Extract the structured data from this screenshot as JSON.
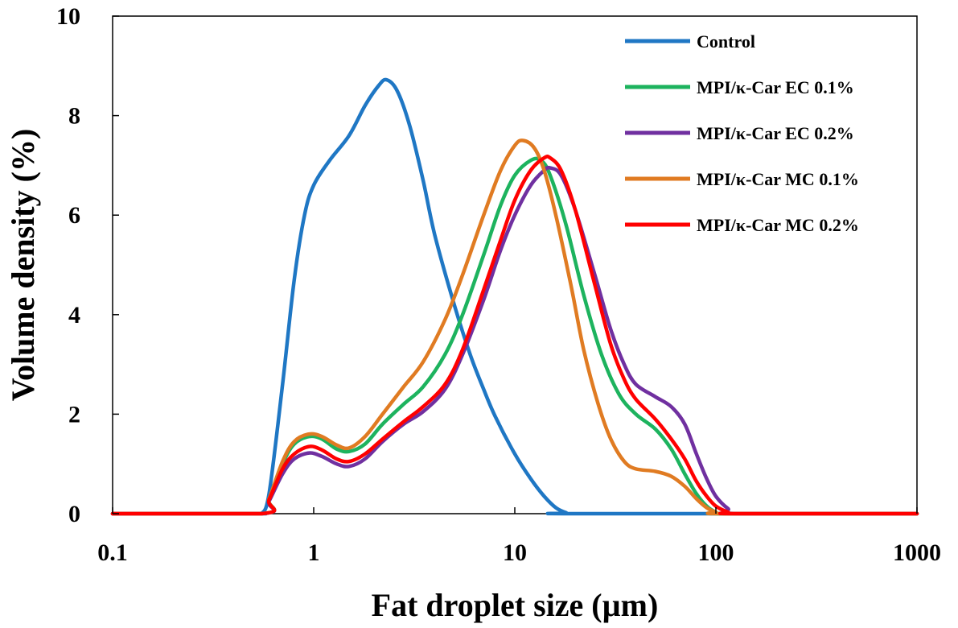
{
  "chart_data": {
    "type": "line",
    "xlabel": "Fat droplet size (µm)",
    "ylabel": "Volume density (%)",
    "xscale": "log",
    "xlim": [
      0.1,
      1000
    ],
    "ylim": [
      0,
      10
    ],
    "x_ticks": [
      "0.1",
      "1",
      "10",
      "100",
      "1000"
    ],
    "y_ticks": [
      "0",
      "2",
      "4",
      "6",
      "8",
      "10"
    ],
    "grid": false,
    "legend_position": "top-right",
    "series": [
      {
        "name": "Control",
        "color": "#1f77c4",
        "points": [
          [
            0.1,
            0
          ],
          [
            0.5,
            0
          ],
          [
            0.55,
            0
          ],
          [
            0.6,
            0.4
          ],
          [
            0.7,
            2.6
          ],
          [
            0.8,
            4.7
          ],
          [
            0.9,
            6.0
          ],
          [
            1.0,
            6.6
          ],
          [
            1.2,
            7.1
          ],
          [
            1.5,
            7.6
          ],
          [
            1.8,
            8.2
          ],
          [
            2.1,
            8.6
          ],
          [
            2.3,
            8.72
          ],
          [
            2.6,
            8.5
          ],
          [
            3.0,
            7.8
          ],
          [
            3.5,
            6.7
          ],
          [
            4.0,
            5.6
          ],
          [
            5.0,
            4.2
          ],
          [
            6.0,
            3.2
          ],
          [
            7.0,
            2.5
          ],
          [
            8.0,
            1.95
          ],
          [
            10.0,
            1.2
          ],
          [
            12.0,
            0.7
          ],
          [
            14.0,
            0.35
          ],
          [
            16.0,
            0.12
          ],
          [
            18.0,
            0.02
          ],
          [
            20.0,
            0
          ],
          [
            1000,
            0
          ]
        ]
      },
      {
        "name": "MPI/κ-Car EC 0.1%",
        "color": "#1db35e",
        "points": [
          [
            0.1,
            0
          ],
          [
            0.55,
            0
          ],
          [
            0.6,
            0.3
          ],
          [
            0.7,
            1.0
          ],
          [
            0.8,
            1.4
          ],
          [
            0.95,
            1.55
          ],
          [
            1.1,
            1.5
          ],
          [
            1.3,
            1.3
          ],
          [
            1.5,
            1.25
          ],
          [
            1.8,
            1.4
          ],
          [
            2.2,
            1.8
          ],
          [
            2.8,
            2.2
          ],
          [
            3.5,
            2.55
          ],
          [
            4.5,
            3.2
          ],
          [
            5.5,
            4.0
          ],
          [
            7.0,
            5.2
          ],
          [
            8.5,
            6.2
          ],
          [
            10.0,
            6.8
          ],
          [
            12.0,
            7.1
          ],
          [
            13.5,
            7.1
          ],
          [
            15.0,
            6.8
          ],
          [
            18.0,
            5.8
          ],
          [
            22.0,
            4.4
          ],
          [
            27.0,
            3.2
          ],
          [
            33.0,
            2.4
          ],
          [
            40.0,
            2.0
          ],
          [
            50.0,
            1.7
          ],
          [
            60.0,
            1.3
          ],
          [
            70.0,
            0.8
          ],
          [
            80.0,
            0.4
          ],
          [
            90.0,
            0.15
          ],
          [
            100.0,
            0.03
          ],
          [
            110.0,
            0
          ],
          [
            1000,
            0
          ]
        ]
      },
      {
        "name": "MPI/κ-Car EC 0.2%",
        "color": "#7030a0",
        "points": [
          [
            0.1,
            0
          ],
          [
            0.55,
            0
          ],
          [
            0.6,
            0.25
          ],
          [
            0.7,
            0.8
          ],
          [
            0.8,
            1.1
          ],
          [
            0.95,
            1.22
          ],
          [
            1.1,
            1.15
          ],
          [
            1.3,
            1.0
          ],
          [
            1.5,
            0.95
          ],
          [
            1.8,
            1.1
          ],
          [
            2.2,
            1.45
          ],
          [
            2.8,
            1.8
          ],
          [
            3.5,
            2.05
          ],
          [
            4.5,
            2.5
          ],
          [
            5.5,
            3.2
          ],
          [
            7.0,
            4.3
          ],
          [
            8.5,
            5.3
          ],
          [
            10.0,
            6.0
          ],
          [
            12.0,
            6.6
          ],
          [
            14.0,
            6.9
          ],
          [
            15.0,
            6.95
          ],
          [
            17.0,
            6.8
          ],
          [
            20.0,
            6.1
          ],
          [
            25.0,
            4.8
          ],
          [
            30.0,
            3.7
          ],
          [
            35.0,
            3.0
          ],
          [
            40.0,
            2.6
          ],
          [
            50.0,
            2.35
          ],
          [
            60.0,
            2.15
          ],
          [
            70.0,
            1.8
          ],
          [
            80.0,
            1.2
          ],
          [
            90.0,
            0.7
          ],
          [
            100.0,
            0.35
          ],
          [
            115.0,
            0.1
          ],
          [
            130.0,
            0
          ],
          [
            1000,
            0
          ]
        ]
      },
      {
        "name": "MPI/κ-Car MC 0.1%",
        "color": "#e07b22",
        "points": [
          [
            0.1,
            0
          ],
          [
            0.55,
            0
          ],
          [
            0.6,
            0.3
          ],
          [
            0.7,
            1.05
          ],
          [
            0.8,
            1.45
          ],
          [
            0.95,
            1.6
          ],
          [
            1.1,
            1.55
          ],
          [
            1.3,
            1.38
          ],
          [
            1.5,
            1.32
          ],
          [
            1.8,
            1.55
          ],
          [
            2.2,
            2.0
          ],
          [
            2.8,
            2.55
          ],
          [
            3.5,
            3.05
          ],
          [
            4.5,
            3.9
          ],
          [
            5.5,
            4.8
          ],
          [
            7.0,
            6.0
          ],
          [
            8.5,
            6.9
          ],
          [
            10.0,
            7.4
          ],
          [
            11.0,
            7.5
          ],
          [
            12.5,
            7.35
          ],
          [
            14.0,
            6.9
          ],
          [
            16.0,
            6.0
          ],
          [
            19.0,
            4.6
          ],
          [
            22.0,
            3.3
          ],
          [
            26.0,
            2.2
          ],
          [
            30.0,
            1.5
          ],
          [
            35.0,
            1.05
          ],
          [
            40.0,
            0.9
          ],
          [
            50.0,
            0.85
          ],
          [
            60.0,
            0.75
          ],
          [
            70.0,
            0.55
          ],
          [
            80.0,
            0.3
          ],
          [
            90.0,
            0.12
          ],
          [
            100.0,
            0.03
          ],
          [
            110.0,
            0
          ],
          [
            1000,
            0
          ]
        ]
      },
      {
        "name": "MPI/κ-Car MC 0.2%",
        "color": "#ff0000",
        "points": [
          [
            0.1,
            0
          ],
          [
            0.55,
            0
          ],
          [
            0.6,
            0.28
          ],
          [
            0.7,
            0.9
          ],
          [
            0.8,
            1.2
          ],
          [
            0.95,
            1.35
          ],
          [
            1.1,
            1.28
          ],
          [
            1.3,
            1.1
          ],
          [
            1.5,
            1.05
          ],
          [
            1.8,
            1.2
          ],
          [
            2.2,
            1.5
          ],
          [
            2.8,
            1.85
          ],
          [
            3.5,
            2.15
          ],
          [
            4.5,
            2.6
          ],
          [
            5.5,
            3.3
          ],
          [
            7.0,
            4.5
          ],
          [
            8.5,
            5.5
          ],
          [
            10.0,
            6.3
          ],
          [
            12.0,
            6.9
          ],
          [
            14.0,
            7.15
          ],
          [
            15.0,
            7.15
          ],
          [
            17.0,
            6.9
          ],
          [
            20.0,
            6.1
          ],
          [
            25.0,
            4.6
          ],
          [
            30.0,
            3.4
          ],
          [
            35.0,
            2.7
          ],
          [
            40.0,
            2.3
          ],
          [
            50.0,
            1.9
          ],
          [
            60.0,
            1.5
          ],
          [
            70.0,
            1.1
          ],
          [
            80.0,
            0.65
          ],
          [
            90.0,
            0.35
          ],
          [
            100.0,
            0.15
          ],
          [
            115.0,
            0.03
          ],
          [
            125.0,
            0
          ],
          [
            1000,
            0
          ]
        ]
      }
    ]
  }
}
